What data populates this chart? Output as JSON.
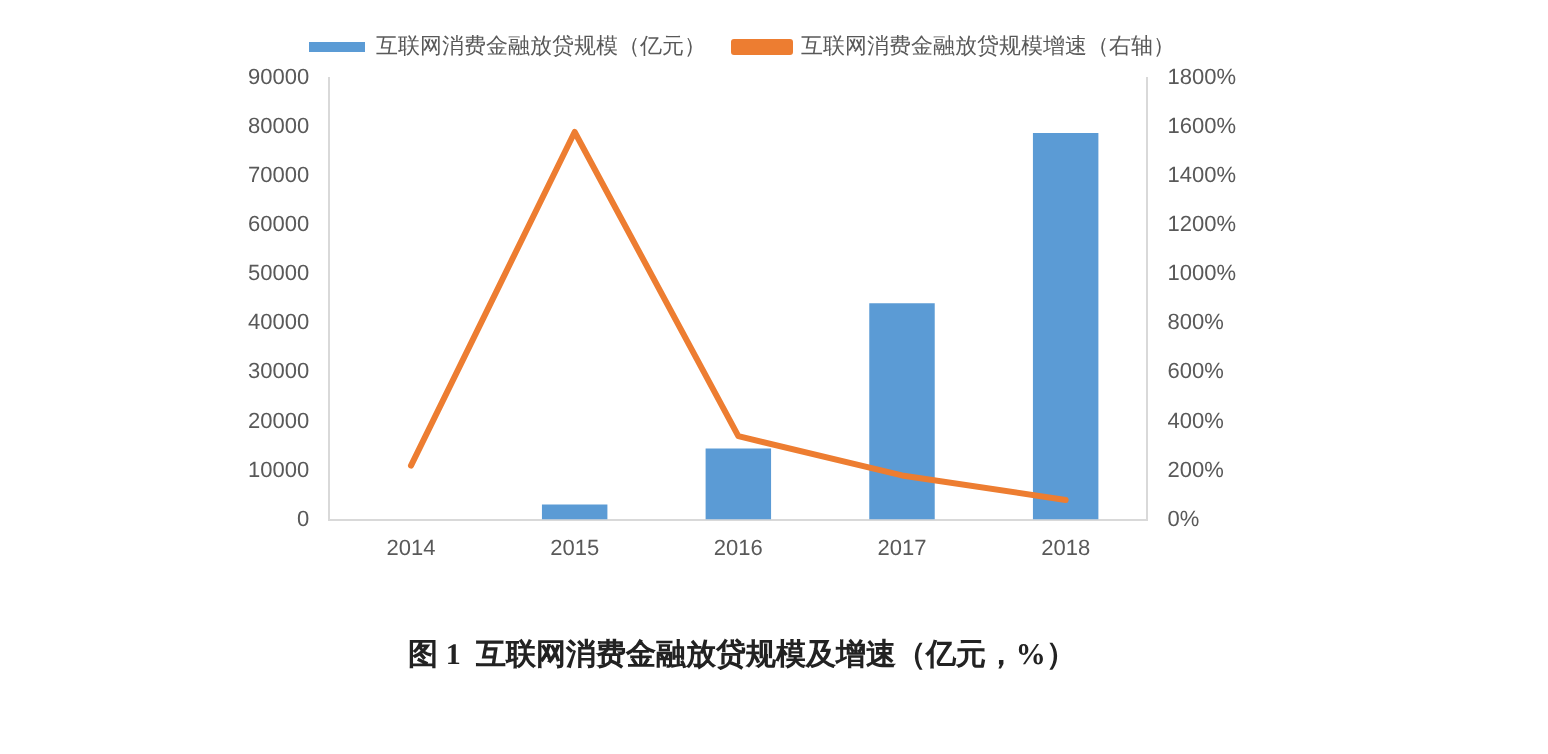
{
  "chart_data": {
    "type": "bar",
    "title": "图 1  互联网消费金融放贷规模及增速（亿元，%）",
    "categories": [
      "2014",
      "2015",
      "2016",
      "2017",
      "2018"
    ],
    "series": [
      {
        "name": "互联网消费金融放贷规模（亿元）",
        "color": "#5b9bd5",
        "values": [
          null,
          3100,
          14500,
          44100,
          78800
        ]
      },
      {
        "name": "互联网消费金融放贷规模增速（右轴）",
        "type": "line",
        "axis": "y2",
        "color": "#ed7d31",
        "values": [
          220,
          1580,
          340,
          180,
          80
        ]
      }
    ],
    "ylim": [
      0,
      90000
    ],
    "yticks": [
      0,
      10000,
      20000,
      30000,
      40000,
      50000,
      60000,
      70000,
      80000,
      90000
    ],
    "y2lim": [
      0,
      1800
    ],
    "y2ticks": [
      {
        "value": 0,
        "label": "0%"
      },
      {
        "value": 200,
        "label": "200%"
      },
      {
        "value": 400,
        "label": "400%"
      },
      {
        "value": 600,
        "label": "600%"
      },
      {
        "value": 800,
        "label": "800%"
      },
      {
        "value": 1000,
        "label": "1000%"
      },
      {
        "value": 1200,
        "label": "1200%"
      },
      {
        "value": 1400,
        "label": "1400%"
      },
      {
        "value": 1600,
        "label": "1600%"
      },
      {
        "value": 1800,
        "label": "1800%"
      }
    ],
    "grid": false,
    "legend": "top",
    "marker": "none"
  }
}
